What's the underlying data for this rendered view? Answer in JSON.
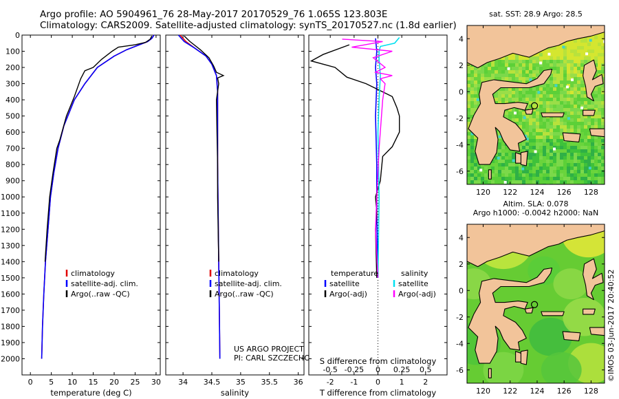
{
  "header": {
    "line1": "Argo profile: AO 5904961_76 28-May-2017 20170529_76 1.065S 123.803E",
    "line2": "Climatology: CARS2009. Satellite-adjusted climatology: synTS_20170527.nc (1.8d earlier)"
  },
  "depth_axis": {
    "label": "",
    "ylim": [
      0,
      2100
    ],
    "ticks": [
      0,
      100,
      200,
      300,
      400,
      500,
      600,
      700,
      800,
      900,
      1000,
      1100,
      1200,
      1300,
      1400,
      1500,
      1600,
      1700,
      1800,
      1900,
      2000
    ]
  },
  "colors": {
    "climatology": "#e00000",
    "satellite": "#0000ff",
    "argo": "#000000",
    "sal_satellite": "#00e0f0",
    "sal_argo": "#ff00ff",
    "land": "#f2c49a"
  },
  "chart_data": [
    {
      "type": "line",
      "name": "temperature-profile",
      "xlabel": "temperature (deg C)",
      "xlim": [
        -2,
        31
      ],
      "xticks": [
        0,
        5,
        10,
        15,
        20,
        25,
        30
      ],
      "legend": [
        "climatology",
        "satellite-adj. clim.",
        "Argo(..raw -QC)"
      ],
      "series": [
        {
          "name": "climatology",
          "points": [
            [
              29.5,
              0
            ],
            [
              29,
              20
            ],
            [
              28,
              40
            ],
            [
              26,
              60
            ],
            [
              23,
              90
            ],
            [
              20,
              130
            ],
            [
              16,
              200
            ],
            [
              13,
              300
            ],
            [
              10.5,
              400
            ],
            [
              8,
              560
            ],
            [
              6.6,
              700
            ],
            [
              5.6,
              850
            ],
            [
              4.8,
              1000
            ],
            [
              4.2,
              1200
            ],
            [
              3.6,
              1400
            ],
            [
              3.2,
              1600
            ],
            [
              2.9,
              1800
            ],
            [
              2.7,
              2000
            ]
          ]
        },
        {
          "name": "satellite",
          "points": [
            [
              29.5,
              0
            ],
            [
              29,
              20
            ],
            [
              28,
              40
            ],
            [
              26,
              60
            ],
            [
              23,
              90
            ],
            [
              20,
              130
            ],
            [
              16,
              200
            ],
            [
              13,
              300
            ],
            [
              10.5,
              400
            ],
            [
              8,
              560
            ],
            [
              6.6,
              700
            ],
            [
              5.6,
              850
            ],
            [
              4.8,
              1000
            ],
            [
              4.2,
              1200
            ],
            [
              3.6,
              1400
            ],
            [
              3.2,
              1600
            ],
            [
              2.9,
              1800
            ],
            [
              2.7,
              2000
            ]
          ]
        },
        {
          "name": "argo",
          "points": [
            [
              29,
              5
            ],
            [
              28.6,
              25
            ],
            [
              27.5,
              45
            ],
            [
              25,
              60
            ],
            [
              21,
              75
            ],
            [
              19.5,
              100
            ],
            [
              17,
              150
            ],
            [
              15,
              200
            ],
            [
              13,
              220
            ],
            [
              12,
              270
            ],
            [
              10.5,
              380
            ],
            [
              8.6,
              500
            ],
            [
              7,
              650
            ],
            [
              6.3,
              700
            ],
            [
              5.4,
              850
            ],
            [
              4.6,
              1000
            ],
            [
              4,
              1200
            ],
            [
              3.5,
              1400
            ]
          ]
        }
      ]
    },
    {
      "type": "line",
      "name": "salinity-profile",
      "xlabel": "salinity",
      "xlim": [
        33.7,
        36.1
      ],
      "xticks": [
        34,
        34.5,
        35,
        35.5,
        36
      ],
      "legend": [
        "climatology",
        "satellite-adj. clim.",
        "Argo(..raw -QC)"
      ],
      "annotation": [
        "US ARGO PROJECT",
        "PI: CARL SZCZECHOWSKI"
      ],
      "series": [
        {
          "name": "climatology",
          "points": [
            [
              33.95,
              0
            ],
            [
              34.05,
              40
            ],
            [
              34.2,
              80
            ],
            [
              34.4,
              130
            ],
            [
              34.5,
              180
            ],
            [
              34.58,
              250
            ],
            [
              34.6,
              350
            ],
            [
              34.6,
              500
            ],
            [
              34.6,
              800
            ],
            [
              34.61,
              1100
            ],
            [
              34.62,
              1400
            ],
            [
              34.63,
              1700
            ],
            [
              34.64,
              2000
            ]
          ]
        },
        {
          "name": "satellite",
          "points": [
            [
              33.92,
              0
            ],
            [
              34.02,
              40
            ],
            [
              34.2,
              80
            ],
            [
              34.4,
              130
            ],
            [
              34.5,
              180
            ],
            [
              34.58,
              250
            ],
            [
              34.6,
              350
            ],
            [
              34.6,
              500
            ],
            [
              34.6,
              800
            ],
            [
              34.61,
              1100
            ],
            [
              34.62,
              1400
            ],
            [
              34.63,
              1700
            ],
            [
              34.64,
              2000
            ]
          ]
        },
        {
          "name": "argo",
          "points": [
            [
              34.02,
              5
            ],
            [
              34.12,
              40
            ],
            [
              34.3,
              90
            ],
            [
              34.45,
              140
            ],
            [
              34.53,
              190
            ],
            [
              34.58,
              230
            ],
            [
              34.7,
              250
            ],
            [
              34.6,
              265
            ],
            [
              34.62,
              300
            ],
            [
              34.58,
              400
            ],
            [
              34.59,
              600
            ],
            [
              34.6,
              800
            ],
            [
              34.6,
              1000
            ],
            [
              34.61,
              1200
            ],
            [
              34.62,
              1400
            ]
          ]
        }
      ]
    },
    {
      "type": "line",
      "name": "difference-profile",
      "xlabel": "T difference from climatology",
      "xlabel_top": "S difference from climatology",
      "xlim": [
        -2.9,
        2.9
      ],
      "xticks": [
        -2,
        -1,
        0,
        1,
        2
      ],
      "xticks_sal": [
        -0.5,
        -0.25,
        0,
        0.25,
        0.5
      ],
      "legend_left": [
        "temperature",
        "satellite",
        "Argo(-adj)"
      ],
      "legend_right": [
        "salinity",
        "satellite",
        "Argo(-adj)"
      ],
      "series": [
        {
          "name": "temperature satellite",
          "points": [
            [
              -0.1,
              20
            ],
            [
              -0.05,
              100
            ],
            [
              -0.1,
              200
            ],
            [
              -0.05,
              300
            ],
            [
              -0.1,
              500
            ],
            [
              -0.05,
              800
            ],
            [
              -0.05,
              1100
            ],
            [
              0,
              1500
            ]
          ]
        },
        {
          "name": "temperature Argo(-adj)",
          "points": [
            [
              -1.2,
              60
            ],
            [
              -2.3,
              120
            ],
            [
              -2.8,
              160
            ],
            [
              -1.8,
              200
            ],
            [
              -1.3,
              260
            ],
            [
              -0.5,
              300
            ],
            [
              0.6,
              380
            ],
            [
              0.8,
              450
            ],
            [
              0.9,
              500
            ],
            [
              0.9,
              600
            ],
            [
              0.6,
              690
            ],
            [
              0.2,
              750
            ],
            [
              0.1,
              900
            ],
            [
              -0.1,
              1000
            ],
            [
              -0.05,
              1100
            ],
            [
              -0.1,
              1200
            ],
            [
              -0.05,
              1500
            ]
          ]
        },
        {
          "name": "salinity satellite",
          "points": [
            [
              0.9,
              15
            ],
            [
              0.7,
              50
            ],
            [
              0.1,
              70
            ],
            [
              0.05,
              100
            ],
            [
              0.05,
              150
            ],
            [
              0.1,
              250
            ],
            [
              0.05,
              400
            ],
            [
              0,
              600
            ],
            [
              0.05,
              1000
            ],
            [
              0,
              1500
            ]
          ]
        },
        {
          "name": "salinity Argo(-adj)",
          "points": [
            [
              -1.5,
              25
            ],
            [
              0.2,
              40
            ],
            [
              -1.1,
              75
            ],
            [
              0.6,
              100
            ],
            [
              -0.2,
              140
            ],
            [
              0.3,
              200
            ],
            [
              -0.1,
              230
            ],
            [
              0.6,
              250
            ],
            [
              0.1,
              270
            ],
            [
              0.3,
              300
            ],
            [
              0.2,
              400
            ],
            [
              0.05,
              700
            ],
            [
              -0.05,
              1000
            ],
            [
              -0.1,
              1200
            ],
            [
              0,
              1500
            ]
          ]
        }
      ]
    },
    {
      "type": "heatmap",
      "name": "map-sst",
      "title": "sat. SST: 28.9 Argo: 28.5",
      "xlim": [
        118.8,
        129.0
      ],
      "ylim": [
        -7,
        5
      ],
      "xticks": [
        120,
        122,
        124,
        126,
        128
      ],
      "yticks": [
        -6,
        -4,
        -2,
        0,
        2,
        4
      ],
      "argo_position": [
        123.803,
        -1.065
      ]
    },
    {
      "type": "heatmap",
      "name": "map-sla",
      "title_lines": [
        "Altim. SLA: 0.078",
        "Argo h1000: -0.0042 h2000: NaN"
      ],
      "xlim": [
        118.8,
        129.0
      ],
      "ylim": [
        -7,
        5
      ],
      "xticks": [
        120,
        122,
        124,
        126,
        128
      ],
      "yticks": [
        -6,
        -4,
        -2,
        0,
        2,
        4
      ],
      "argo_position": [
        123.803,
        -1.065
      ]
    }
  ],
  "credit": "©IMOS 03-Jun-2017 20:40:52"
}
